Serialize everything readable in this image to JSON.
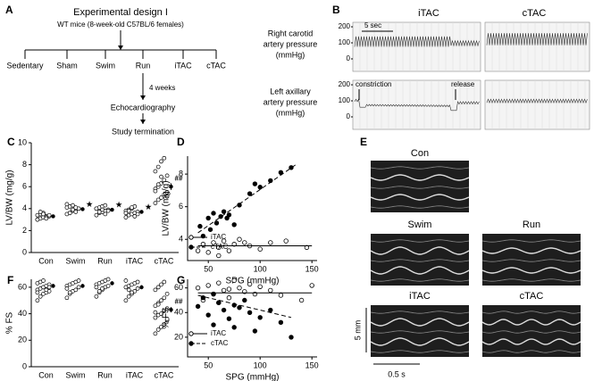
{
  "diagram": {
    "panel_label": "A",
    "title": "Experimental design I",
    "subtitle": "WT mice (8-week-old C57BL/6 females)",
    "groups": [
      "Sedentary",
      "Sham",
      "Swim",
      "Run",
      "iTAC",
      "cTAC"
    ],
    "duration": "4 weeks",
    "steps": [
      "Echocardiography",
      "Study termination"
    ]
  },
  "traces": {
    "panel_label": "B",
    "columns": [
      "iTAC",
      "cTAC"
    ],
    "rows": [
      [
        "Right carotid",
        "artery pressure",
        "(mmHg)"
      ],
      [
        "Left axillary",
        "artery pressure",
        "(mmHg)"
      ]
    ],
    "yticks": [
      0,
      100,
      200
    ],
    "ylim": [
      -78,
      228
    ],
    "scale_bar": "5 sec",
    "events": [
      "constriction",
      "release"
    ]
  },
  "echo": {
    "panel_label": "E",
    "views": [
      "Con",
      "Swim",
      "Run",
      "iTAC",
      "cTAC"
    ],
    "scale_y": "5 mm",
    "scale_x": "0.5 s"
  },
  "chart_data": [
    {
      "type": "strip",
      "panel_label": "C",
      "y_label": "LV/BW (mg/g)",
      "categories": [
        "Con",
        "Swim",
        "Run",
        "iTAC",
        "cTAC"
      ],
      "points": [
        [
          3.0,
          3.1,
          3.2,
          3.3,
          3.3,
          3.4,
          3.5,
          3.6,
          3.2,
          3.4,
          3.0,
          3.7,
          3.5,
          3.1
        ],
        [
          3.5,
          3.6,
          3.8,
          3.9,
          4.0,
          4.1,
          4.2,
          4.3,
          3.7,
          4.0,
          4.4,
          3.6,
          3.9,
          4.1
        ],
        [
          3.4,
          3.6,
          3.7,
          3.8,
          3.9,
          4.0,
          4.1,
          4.2,
          3.5,
          3.8,
          4.0,
          3.7,
          3.9,
          4.3
        ],
        [
          3.2,
          3.4,
          3.5,
          3.6,
          3.7,
          3.8,
          3.9,
          4.0,
          4.2,
          3.5,
          3.6,
          3.8,
          4.1,
          3.3
        ],
        [
          4.5,
          4.8,
          5.0,
          5.3,
          5.5,
          5.8,
          6.0,
          6.3,
          6.6,
          7.0,
          7.4,
          7.8,
          8.3,
          8.6,
          5.1,
          5.6,
          6.2,
          6.9
        ]
      ],
      "means": [
        3.3,
        3.95,
        3.9,
        3.7,
        6.0
      ],
      "errors": [
        0.1,
        0.1,
        0.1,
        0.1,
        0.3
      ],
      "mark_labels": [
        null,
        "★",
        "★",
        "★",
        "##"
      ],
      "ylim": [
        0,
        10
      ],
      "yticks": [
        0,
        2,
        4,
        6,
        8,
        10
      ]
    },
    {
      "type": "scatter",
      "panel_label": "D",
      "y_label": "LV/BW (mg/g)",
      "x_label": "SPG (mmHg)",
      "xlim": [
        30,
        155
      ],
      "xticks": [
        50,
        100,
        150
      ],
      "ylim": [
        2.7,
        9.1
      ],
      "yticks": [
        4,
        6,
        8
      ],
      "series": [
        {
          "name": "iTAC",
          "color": "#000",
          "marker": "open",
          "line": "solid",
          "x": [
            40,
            45,
            50,
            55,
            60,
            65,
            70,
            75,
            80,
            90,
            100,
            110,
            125,
            145,
            60,
            85
          ],
          "values": [
            3.3,
            3.7,
            3.2,
            3.8,
            3.5,
            3.9,
            3.3,
            3.7,
            4.0,
            3.6,
            3.4,
            3.8,
            3.9,
            3.5,
            3.0,
            3.8
          ],
          "fit_x": [
            40,
            150
          ],
          "fit_y": [
            3.6,
            3.6
          ]
        },
        {
          "name": "cTAC",
          "color": "#000",
          "marker": "filled",
          "line": "dashed",
          "x": [
            42,
            45,
            50,
            52,
            55,
            58,
            62,
            65,
            70,
            75,
            80,
            90,
            95,
            100,
            110,
            120,
            130,
            68
          ],
          "values": [
            4.8,
            4.2,
            5.3,
            4.6,
            5.6,
            5.0,
            5.4,
            5.7,
            5.5,
            4.9,
            6.1,
            6.8,
            7.4,
            7.2,
            7.6,
            8.1,
            8.4,
            5.3
          ],
          "fit_x": [
            40,
            135
          ],
          "fit_y": [
            4.4,
            8.6
          ]
        }
      ]
    },
    {
      "type": "strip",
      "panel_label": "F",
      "y_label": "% FS",
      "categories": [
        "Con",
        "Swim",
        "Run",
        "iTAC",
        "cTAC"
      ],
      "points": [
        [
          50,
          53,
          55,
          56,
          57,
          58,
          59,
          60,
          61,
          62,
          63,
          64,
          65,
          58,
          60,
          56
        ],
        [
          52,
          55,
          57,
          58,
          60,
          61,
          62,
          63,
          64,
          65,
          59,
          56
        ],
        [
          53,
          56,
          58,
          60,
          61,
          62,
          63,
          64,
          65,
          66,
          60,
          57,
          59
        ],
        [
          50,
          53,
          55,
          57,
          59,
          60,
          61,
          62,
          63,
          64,
          65,
          58,
          56
        ],
        [
          25,
          28,
          30,
          32,
          35,
          37,
          39,
          40,
          42,
          44,
          46,
          48,
          50,
          52,
          55,
          58,
          60,
          62,
          64,
          36,
          41,
          47
        ]
      ],
      "means": [
        61,
        61,
        63,
        60,
        43
      ],
      "errors": [
        1.5,
        1.5,
        1.5,
        1.5,
        2
      ],
      "mark_labels": [
        null,
        null,
        null,
        null,
        "##"
      ],
      "ylim": [
        0,
        66
      ],
      "yticks": [
        0,
        20,
        40,
        60
      ]
    },
    {
      "type": "scatter",
      "panel_label": "G",
      "y_label": "% FS",
      "x_label": "SPG (mmHg)",
      "xlim": [
        30,
        155
      ],
      "xticks": [
        50,
        100,
        150
      ],
      "ylim": [
        4,
        67
      ],
      "yticks": [
        20,
        40,
        60
      ],
      "series": [
        {
          "name": "iTAC",
          "color": "#000",
          "marker": "open",
          "line": "solid",
          "x": [
            40,
            45,
            50,
            55,
            60,
            65,
            70,
            75,
            80,
            85,
            90,
            95,
            100,
            110,
            120,
            140,
            150,
            60,
            70
          ],
          "values": [
            60,
            50,
            62,
            55,
            64,
            58,
            52,
            66,
            60,
            57,
            63,
            55,
            61,
            58,
            54,
            50,
            62,
            48,
            59
          ],
          "fit_x": [
            40,
            150
          ],
          "fit_y": [
            56,
            56
          ]
        },
        {
          "name": "cTAC",
          "color": "#000",
          "marker": "filled",
          "line": "dashed",
          "x": [
            40,
            45,
            50,
            55,
            60,
            65,
            70,
            75,
            80,
            85,
            90,
            95,
            100,
            110,
            120,
            130,
            55,
            75
          ],
          "values": [
            45,
            52,
            38,
            30,
            48,
            42,
            35,
            28,
            44,
            50,
            40,
            25,
            36,
            42,
            32,
            20,
            55,
            46
          ],
          "fit_x": [
            40,
            130
          ],
          "fit_y": [
            54,
            36
          ]
        }
      ]
    }
  ]
}
